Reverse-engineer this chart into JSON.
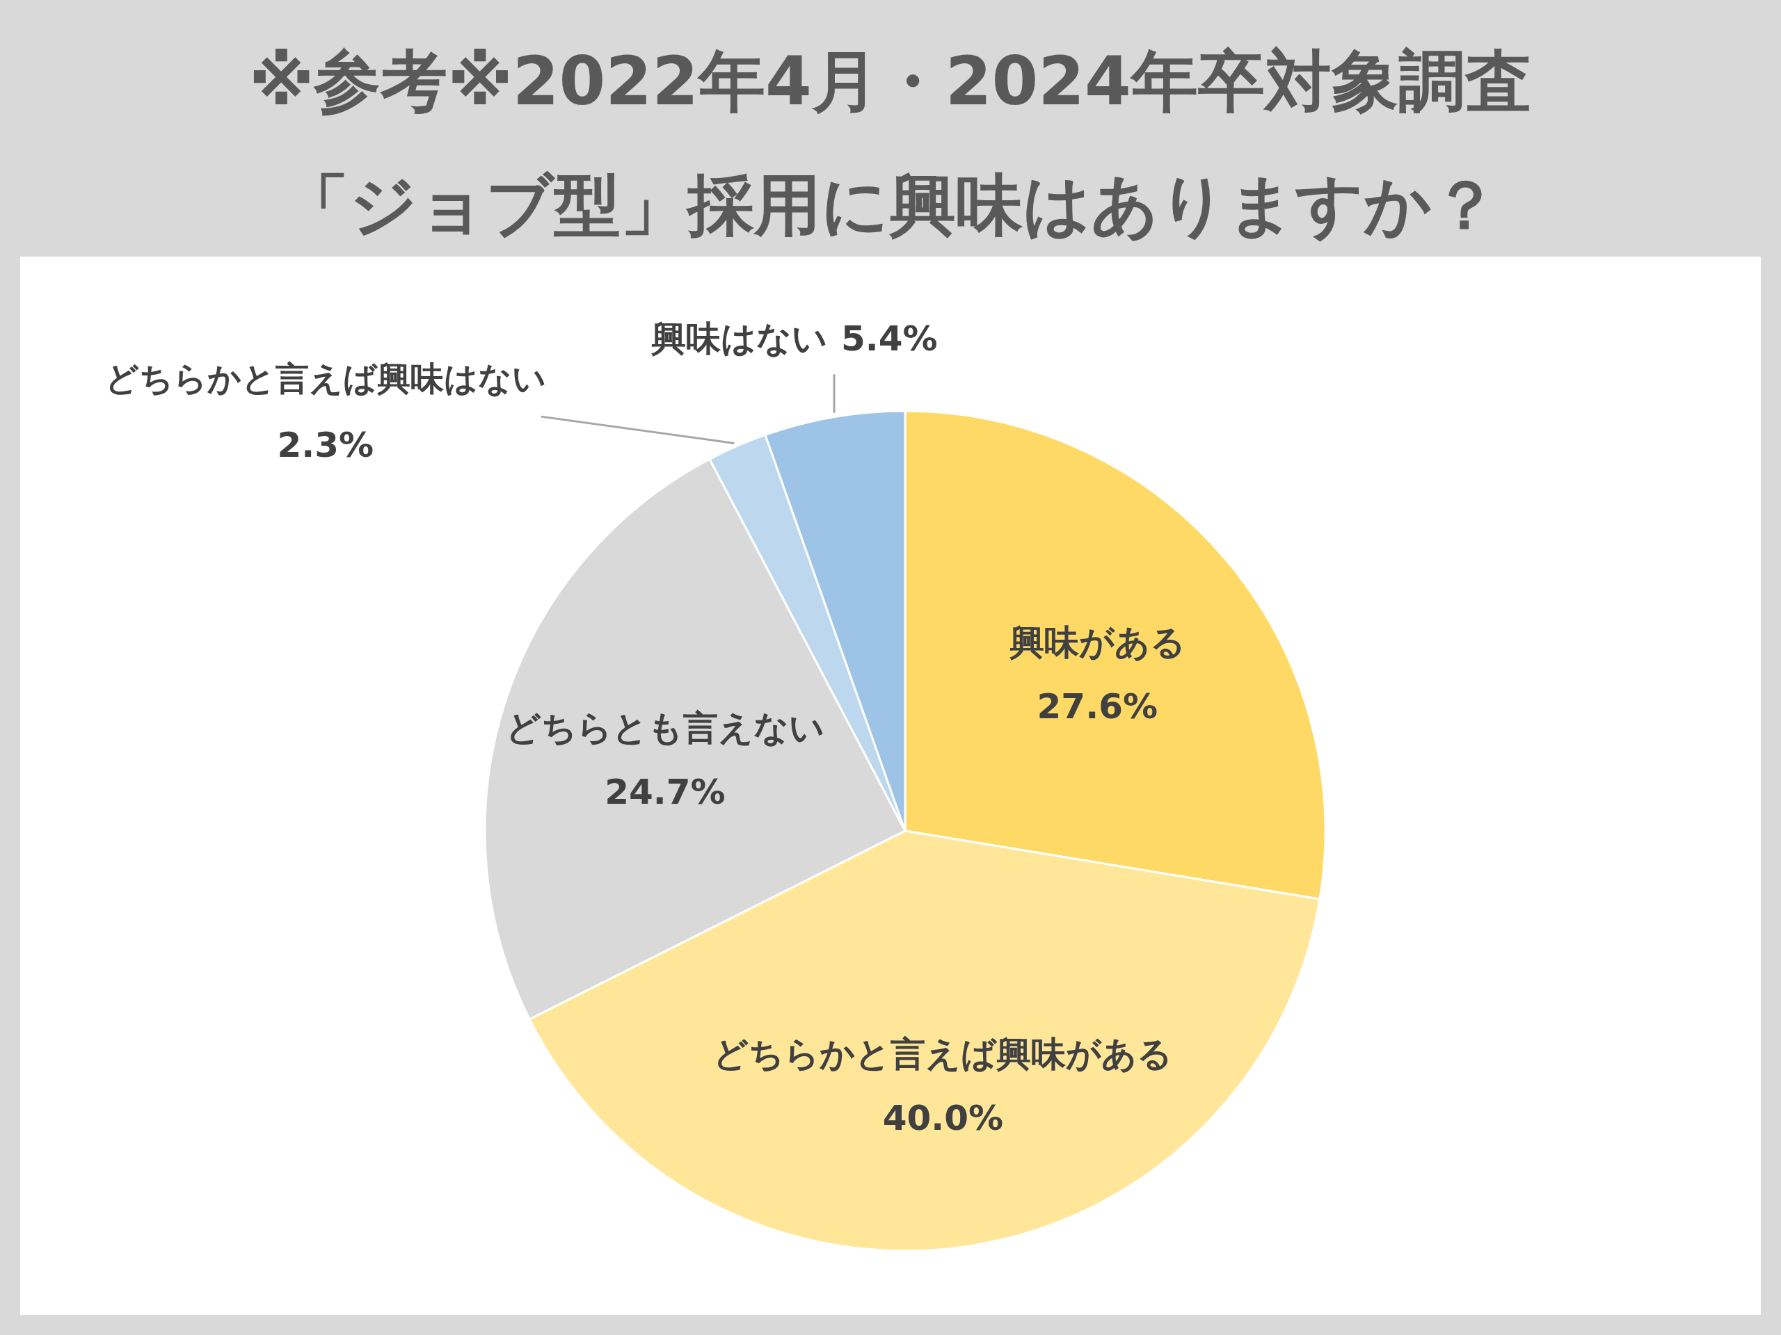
{
  "chart_data": {
    "type": "pie",
    "title": "※参考※2022年4月・2024年卒対象調査",
    "subtitle": "「ジョブ型」採用に興味はありますか？",
    "categories": [
      "興味がある",
      "どちらかと言えば興味がある",
      "どちらとも言えない",
      "どちらかと言えば興味はない",
      "興味はない"
    ],
    "values": [
      27.6,
      40.0,
      24.7,
      2.3,
      5.4
    ],
    "colors": [
      "#ffd966",
      "#ffe699",
      "#d9d9d9",
      "#bdd7ee",
      "#9dc3e6"
    ],
    "value_labels": [
      "27.6%",
      "40.0%",
      "24.7%",
      "2.3%",
      "5.4%"
    ]
  }
}
